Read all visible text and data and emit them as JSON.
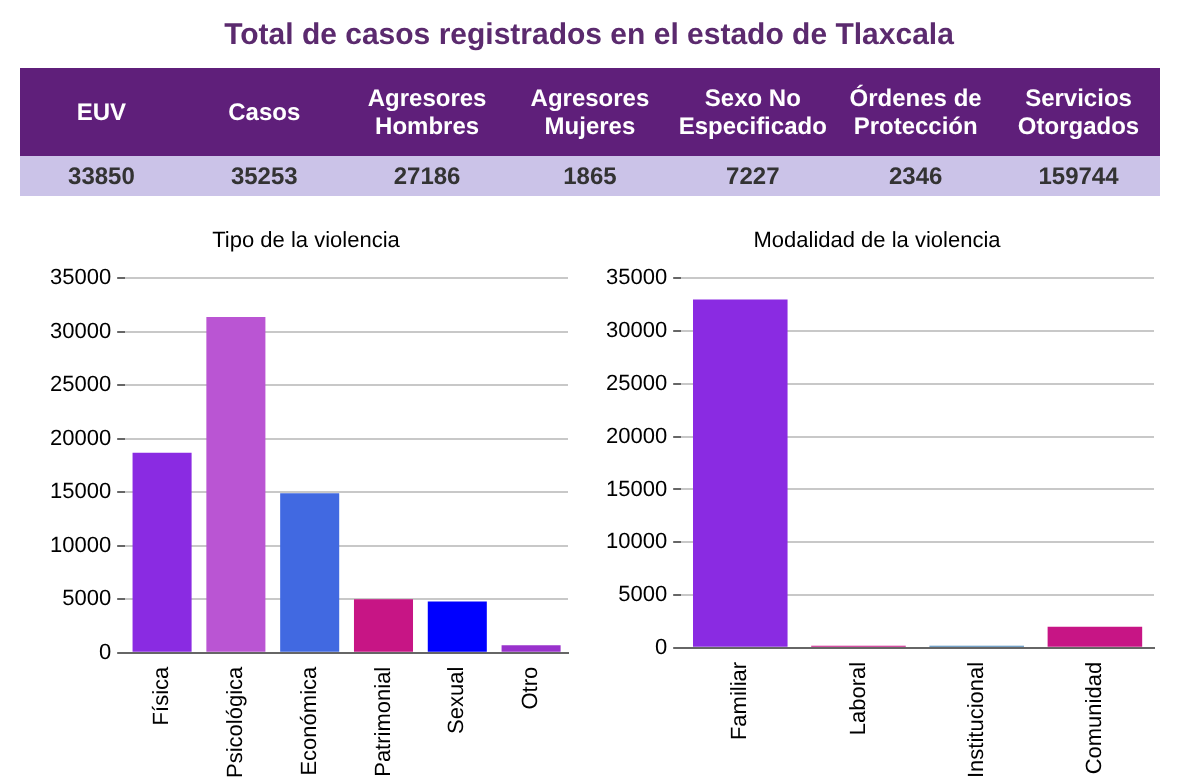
{
  "chart_data": [
    {
      "type": "other",
      "title": "Total de casos registrados en el estado de Tlaxcala",
      "categories": [
        "EUV",
        "Casos",
        "Agresores Hombres",
        "Agresores Mujeres",
        "Sexo No Especificado",
        "Órdenes de Protección",
        "Servicios Otorgados"
      ],
      "values": [
        33850,
        35253,
        27186,
        1865,
        7227,
        2346,
        159744
      ],
      "data_labels": true
    },
    {
      "type": "bar",
      "title": "Tipo de la violencia",
      "categories": [
        "Física",
        "Psicológica",
        "Económica",
        "Patrimonial",
        "Sexual",
        "Otro"
      ],
      "values": [
        18700,
        31400,
        14900,
        5000,
        4800,
        700
      ],
      "colors": [
        "#8a2be2",
        "#ba55d3",
        "#4169e1",
        "#c71585",
        "#0000ff",
        "#9932cc"
      ],
      "ylim": [
        0,
        35000
      ],
      "yticks": [
        0,
        5000,
        10000,
        15000,
        20000,
        25000,
        30000,
        35000
      ],
      "grid": "y",
      "legend": false
    },
    {
      "type": "bar",
      "title": "Modalidad de la violencia",
      "categories": [
        "Familiar",
        "Laboral",
        "Institucional",
        "Comunidad"
      ],
      "values": [
        33000,
        200,
        200,
        2000
      ],
      "colors": [
        "#8a2be2",
        "#c71585",
        "#4682b4",
        "#c71585"
      ],
      "ylim": [
        0,
        35000
      ],
      "yticks": [
        0,
        5000,
        10000,
        15000,
        20000,
        25000,
        30000,
        35000
      ],
      "grid": "y",
      "legend": false
    }
  ]
}
